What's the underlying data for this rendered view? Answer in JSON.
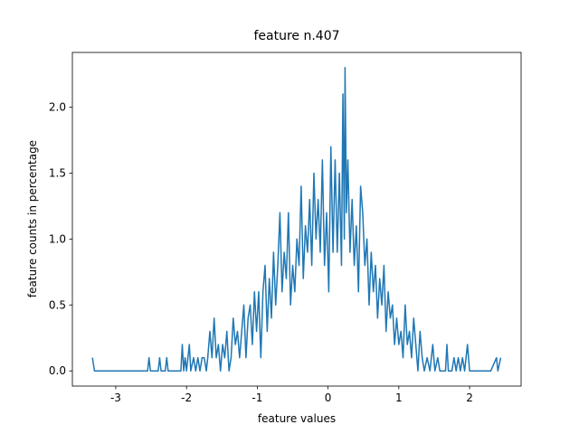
{
  "chart_data": {
    "type": "line",
    "title": "feature n.407",
    "xlabel": "feature values",
    "ylabel": "feature counts in percentage",
    "color": "#1f77b4",
    "xlim": [
      -3.613,
      2.728
    ],
    "ylim": [
      -0.115,
      2.415
    ],
    "xticks": [
      -3,
      -2,
      -1,
      0,
      1,
      2
    ],
    "yticks": [
      {
        "value": 0,
        "label": "0.0"
      },
      {
        "value": 0.5,
        "label": "0.5"
      },
      {
        "value": 1,
        "label": "1.0"
      },
      {
        "value": 1.5,
        "label": "1.5"
      },
      {
        "value": 2,
        "label": "2.0"
      }
    ],
    "x": [
      -3.33,
      -3.3,
      -2.55,
      -2.53,
      -2.51,
      -2.4,
      -2.38,
      -2.36,
      -2.3,
      -2.28,
      -2.26,
      -2.08,
      -2.06,
      -2.04,
      -2.02,
      -2.0,
      -1.96,
      -1.94,
      -1.9,
      -1.87,
      -1.84,
      -1.81,
      -1.78,
      -1.75,
      -1.72,
      -1.7,
      -1.67,
      -1.64,
      -1.61,
      -1.58,
      -1.55,
      -1.52,
      -1.49,
      -1.46,
      -1.43,
      -1.4,
      -1.37,
      -1.34,
      -1.31,
      -1.28,
      -1.25,
      -1.22,
      -1.19,
      -1.16,
      -1.13,
      -1.1,
      -1.07,
      -1.04,
      -1.01,
      -0.98,
      -0.95,
      -0.92,
      -0.89,
      -0.86,
      -0.83,
      -0.8,
      -0.77,
      -0.74,
      -0.71,
      -0.68,
      -0.65,
      -0.62,
      -0.59,
      -0.56,
      -0.53,
      -0.5,
      -0.47,
      -0.44,
      -0.41,
      -0.38,
      -0.35,
      -0.32,
      -0.29,
      -0.26,
      -0.23,
      -0.2,
      -0.17,
      -0.14,
      -0.11,
      -0.08,
      -0.05,
      -0.02,
      0.01,
      0.04,
      0.07,
      0.1,
      0.13,
      0.16,
      0.19,
      0.21,
      0.23,
      0.24,
      0.26,
      0.28,
      0.31,
      0.34,
      0.37,
      0.4,
      0.43,
      0.46,
      0.49,
      0.52,
      0.55,
      0.58,
      0.61,
      0.64,
      0.67,
      0.7,
      0.73,
      0.76,
      0.79,
      0.82,
      0.85,
      0.88,
      0.91,
      0.94,
      0.97,
      1.0,
      1.03,
      1.06,
      1.09,
      1.12,
      1.15,
      1.18,
      1.21,
      1.24,
      1.27,
      1.3,
      1.33,
      1.36,
      1.4,
      1.44,
      1.48,
      1.51,
      1.55,
      1.58,
      1.66,
      1.68,
      1.7,
      1.75,
      1.78,
      1.81,
      1.84,
      1.87,
      1.9,
      1.93,
      1.97,
      2.0,
      2.3,
      2.38,
      2.4,
      2.44
    ],
    "values": [
      0.1,
      0,
      0,
      0.1,
      0,
      0,
      0.1,
      0,
      0,
      0.1,
      0,
      0,
      0.2,
      0,
      0.1,
      0,
      0.2,
      0,
      0.1,
      0,
      0.1,
      0,
      0.1,
      0.1,
      0,
      0.1,
      0.3,
      0.1,
      0.4,
      0.1,
      0.2,
      0,
      0.2,
      0.1,
      0.3,
      0,
      0.1,
      0.4,
      0.2,
      0.3,
      0.1,
      0.3,
      0.5,
      0.1,
      0.4,
      0.5,
      0.2,
      0.6,
      0.3,
      0.6,
      0.1,
      0.6,
      0.8,
      0.3,
      0.7,
      0.4,
      0.9,
      0.5,
      0.8,
      1.2,
      0.6,
      0.9,
      0.7,
      1.2,
      0.5,
      0.8,
      0.6,
      1.0,
      0.8,
      1.4,
      0.7,
      1.1,
      0.9,
      1.3,
      0.8,
      1.5,
      1.0,
      1.3,
      0.9,
      1.6,
      0.8,
      1.2,
      0.6,
      1.7,
      0.9,
      1.6,
      0.9,
      1.5,
      0.8,
      2.1,
      1.0,
      2.3,
      1.2,
      1.6,
      0.9,
      1.3,
      0.8,
      1.1,
      0.6,
      1.4,
      1.2,
      0.8,
      1.0,
      0.5,
      0.9,
      0.6,
      0.8,
      0.4,
      0.7,
      0.5,
      0.8,
      0.3,
      0.6,
      0.4,
      0.5,
      0.2,
      0.4,
      0.2,
      0.3,
      0.1,
      0.5,
      0.2,
      0.3,
      0.1,
      0.4,
      0.2,
      0,
      0.3,
      0.1,
      0,
      0.1,
      0,
      0.2,
      0,
      0.1,
      0,
      0,
      0.2,
      0,
      0,
      0.1,
      0,
      0.1,
      0,
      0.1,
      0,
      0.2,
      0,
      0,
      0.1,
      0,
      0.1
    ]
  }
}
